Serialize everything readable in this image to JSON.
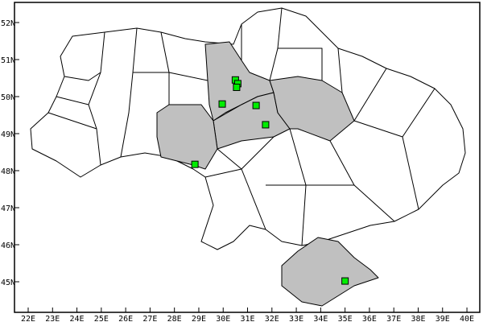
{
  "map": {
    "projection": "equirectangular",
    "lon_range": [
      22,
      40
    ],
    "lat_range": [
      45,
      52
    ],
    "lon_ticks": [
      "22E",
      "23E",
      "24E",
      "25E",
      "26E",
      "27E",
      "28E",
      "29E",
      "30E",
      "31E",
      "32E",
      "33E",
      "34E",
      "35E",
      "36E",
      "37E",
      "38E",
      "39E",
      "40E"
    ],
    "lat_ticks": [
      "45N",
      "46N",
      "47N",
      "48N",
      "49N",
      "50N",
      "51N",
      "52N"
    ],
    "colors": {
      "land": "#ffffff",
      "highlighted_region": "#c0c0c0",
      "border": "#000000",
      "marker": "#00ee00"
    },
    "highlighted_regions": [
      "Kyiv Oblast",
      "Cherkasy Oblast",
      "Poltava Oblast",
      "Vinnytsia Oblast",
      "Crimea"
    ],
    "markers": [
      {
        "lon": 30.5,
        "lat": 50.45
      },
      {
        "lon": 30.6,
        "lat": 50.35
      },
      {
        "lon": 30.55,
        "lat": 50.25
      },
      {
        "lon": 29.96,
        "lat": 49.8
      },
      {
        "lon": 31.35,
        "lat": 49.76
      },
      {
        "lon": 31.74,
        "lat": 49.24
      },
      {
        "lon": 28.84,
        "lat": 48.17
      },
      {
        "lon": 35.0,
        "lat": 45.02
      }
    ]
  }
}
